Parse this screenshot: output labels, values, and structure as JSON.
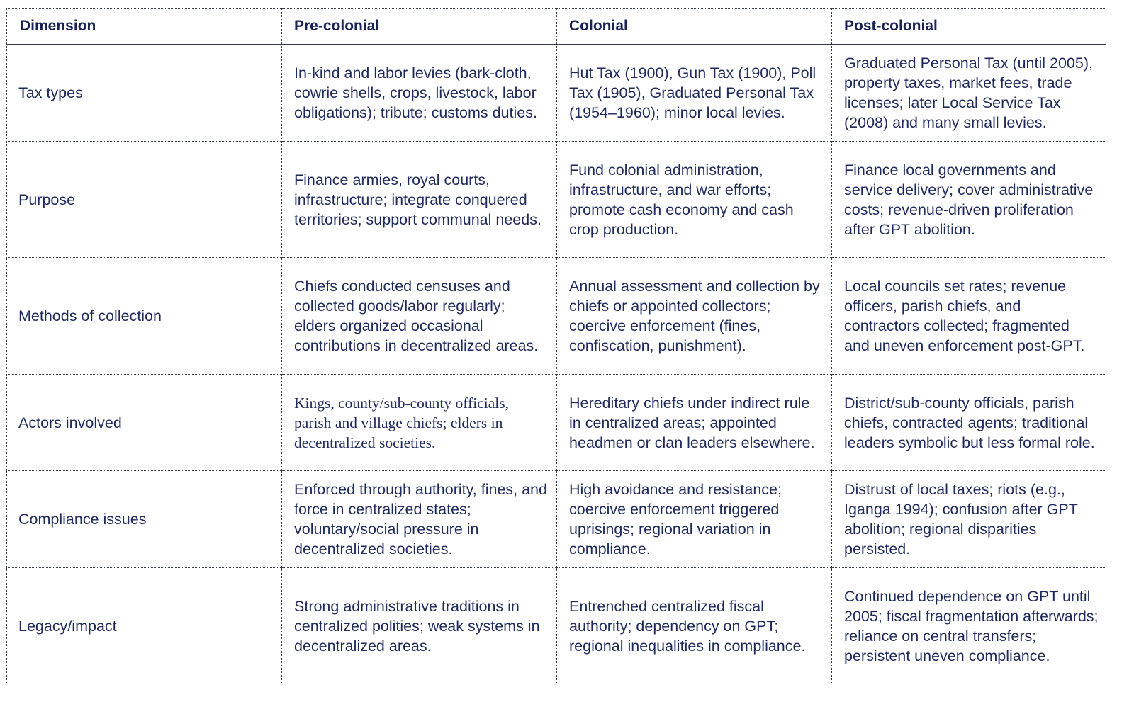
{
  "headers": [
    "Dimension",
    "Pre-colonial",
    "Colonial",
    "Post-colonial"
  ],
  "rows": [
    {
      "dimension": "Tax types",
      "pre_colonial": "In-kind and labor levies (bark-cloth, cowrie shells, crops, livestock, labor obligations); tribute; customs duties.",
      "colonial": "Hut Tax (1900), Gun Tax (1900), Poll Tax (1905), Graduated Personal Tax (1954–1960); minor local levies.",
      "post_colonial": "Graduated Personal Tax (until 2005), property taxes, market fees, trade licenses; later Local Service Tax (2008) and many small levies."
    },
    {
      "dimension": "Purpose",
      "pre_colonial": "Finance armies, royal courts, infrastructure; integrate conquered territories; support communal needs.",
      "colonial": "Fund colonial administration, infrastructure, and war efforts; promote cash economy and cash crop production.",
      "post_colonial": "Finance local governments and service delivery; cover administrative costs; revenue-driven proliferation after GPT abolition."
    },
    {
      "dimension": "Methods of collection",
      "pre_colonial": "Chiefs conducted censuses and collected goods/labor regularly; elders organized occasional contributions in decentralized areas.",
      "colonial": "Annual assessment and collection by chiefs or appointed collectors; coercive enforcement (fines, confiscation, punishment).",
      "post_colonial": "Local councils set rates; revenue officers, parish chiefs, and contractors collected; fragmented and uneven enforcement post-GPT."
    },
    {
      "dimension": "Actors involved",
      "pre_colonial": "Kings, county/sub-county officials, parish and village chiefs; elders in decentralized societies.",
      "colonial": "Hereditary chiefs under indirect rule in centralized areas; appointed headmen or clan leaders elsewhere.",
      "post_colonial": "District/sub-county officials, parish chiefs, contracted agents; traditional leaders symbolic but less formal role."
    },
    {
      "dimension": "Compliance issues",
      "pre_colonial": "Enforced through authority, fines, and force in centralized states; voluntary/social pressure in decentralized societies.",
      "colonial": "High avoidance and resistance; coercive enforcement triggered uprisings; regional variation in compliance.",
      "post_colonial": "Distrust of local taxes; riots (e.g., Iganga 1994); confusion after GPT abolition; regional disparities persisted."
    },
    {
      "dimension": "Legacy/impact",
      "pre_colonial": "Strong administrative traditions in centralized polities; weak systems in decentralized areas.",
      "colonial": "Entrenched centralized fiscal authority; dependency on GPT; regional inequalities in compliance.",
      "post_colonial": "Continued dependence on GPT until 2005; fiscal fragmentation afterwards; reliance on central transfers; persistent uneven compliance."
    }
  ]
}
